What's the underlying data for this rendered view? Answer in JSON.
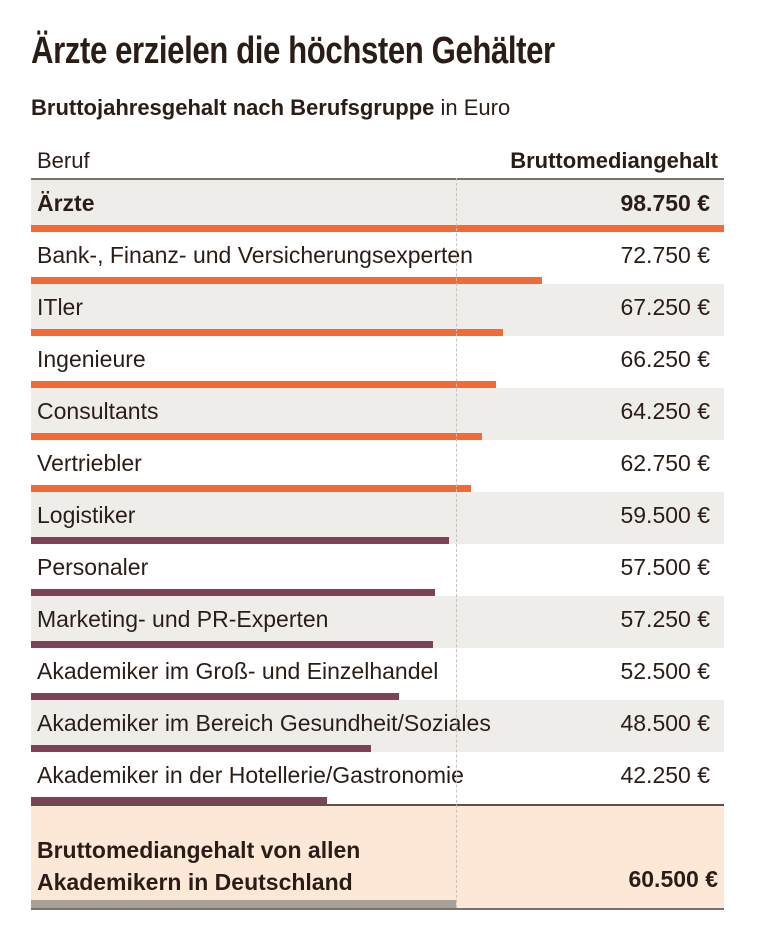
{
  "title": "Ärzte erzielen die höchsten Gehälter",
  "subtitle_bold": "Bruttojahresgehalt nach Berufsgruppe",
  "subtitle_rest": " in Euro",
  "chart_data": {
    "type": "bar",
    "columns": [
      "Beruf",
      "Bruttomediangehalt"
    ],
    "rows": [
      {
        "label": "Ärzte",
        "value": 98750,
        "display": "98.750 €",
        "color": "#f26b36",
        "bold": true
      },
      {
        "label": "Bank-, Finanz- und Versicherungsexperten",
        "value": 72750,
        "display": "72.750 €",
        "color": "#f26b36"
      },
      {
        "label": "ITler",
        "value": 67250,
        "display": "67.250 €",
        "color": "#f26b36"
      },
      {
        "label": "Ingenieure",
        "value": 66250,
        "display": "66.250 €",
        "color": "#f26b36"
      },
      {
        "label": "Consultants",
        "value": 64250,
        "display": "64.250 €",
        "color": "#f26b36"
      },
      {
        "label": "Vertriebler",
        "value": 62750,
        "display": "62.750 €",
        "color": "#f26b36"
      },
      {
        "label": "Logistiker",
        "value": 59500,
        "display": "59.500 €",
        "color": "#7d4255"
      },
      {
        "label": "Personaler",
        "value": 57500,
        "display": "57.500 €",
        "color": "#7d4255"
      },
      {
        "label": "Marketing- und PR-Experten",
        "value": 57250,
        "display": "57.250 €",
        "color": "#7d4255"
      },
      {
        "label": "Akademiker im Groß- und Einzelhandel",
        "value": 52500,
        "display": "52.500 €",
        "color": "#7d4255"
      },
      {
        "label": "Akademiker im Bereich Gesundheit/Soziales",
        "value": 48500,
        "display": "48.500 €",
        "color": "#7d4255"
      },
      {
        "label": "Akademiker in der Hotellerie/Gastronomie",
        "value": 42250,
        "display": "42.250 €",
        "color": "#7d4255"
      }
    ],
    "summary": {
      "label_line1": "Bruttomediangehalt von allen",
      "label_line2": "Akademikern in Deutschland",
      "value": 60500,
      "display": "60.500 €",
      "color": "#a9a097"
    },
    "xlim": [
      0,
      98750
    ]
  }
}
